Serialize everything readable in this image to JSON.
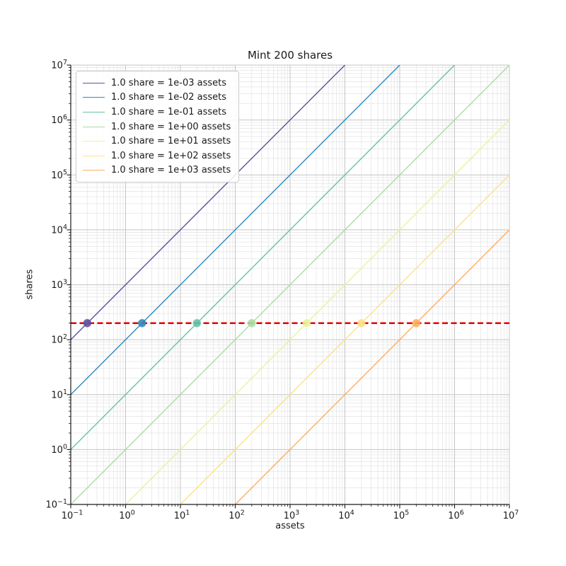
{
  "chart_data": {
    "type": "line",
    "title": "Mint 200 shares",
    "xlabel": "assets",
    "ylabel": "shares",
    "x_scale": "log",
    "y_scale": "log",
    "xlim": [
      0.1,
      10000000
    ],
    "ylim": [
      0.1,
      10000000
    ],
    "x_tick_exponents": [
      -1,
      0,
      1,
      2,
      3,
      4,
      5,
      6,
      7
    ],
    "y_tick_exponents": [
      -1,
      0,
      1,
      2,
      3,
      4,
      5,
      6,
      7
    ],
    "grid": {
      "major": true,
      "minor": true
    },
    "legend_position": "upper left",
    "mint_shares": 200,
    "series": [
      {
        "label": "1.0 share = 1e-03 assets",
        "assets_per_share": 0.001,
        "color": "#5e4fa2",
        "mint_point": {
          "assets": 0.2,
          "shares": 200
        }
      },
      {
        "label": "1.0 share = 1e-02 assets",
        "assets_per_share": 0.01,
        "color": "#3288bd",
        "mint_point": {
          "assets": 2,
          "shares": 200
        }
      },
      {
        "label": "1.0 share = 1e-01 assets",
        "assets_per_share": 0.1,
        "color": "#66c2a5",
        "mint_point": {
          "assets": 20,
          "shares": 200
        }
      },
      {
        "label": "1.0 share = 1e+00 assets",
        "assets_per_share": 1,
        "color": "#abdda4",
        "mint_point": {
          "assets": 200,
          "shares": 200
        }
      },
      {
        "label": "1.0 share = 1e+01 assets",
        "assets_per_share": 10,
        "color": "#e6f598",
        "mint_point": {
          "assets": 2000,
          "shares": 200
        }
      },
      {
        "label": "1.0 share = 1e+02 assets",
        "assets_per_share": 100,
        "color": "#fee08b",
        "mint_point": {
          "assets": 20000,
          "shares": 200
        }
      },
      {
        "label": "1.0 share = 1e+03 assets",
        "assets_per_share": 1000,
        "color": "#fdae61",
        "mint_point": {
          "assets": 200000,
          "shares": 200
        }
      }
    ],
    "reference_line": {
      "shares": 200,
      "color": "#e60000",
      "style": "dashed"
    },
    "colors": {
      "grid_major": "#c4c4c4",
      "grid_minor": "#e4e4e4",
      "spine": "#1a1a1a",
      "text": "#1a1a1a"
    }
  }
}
